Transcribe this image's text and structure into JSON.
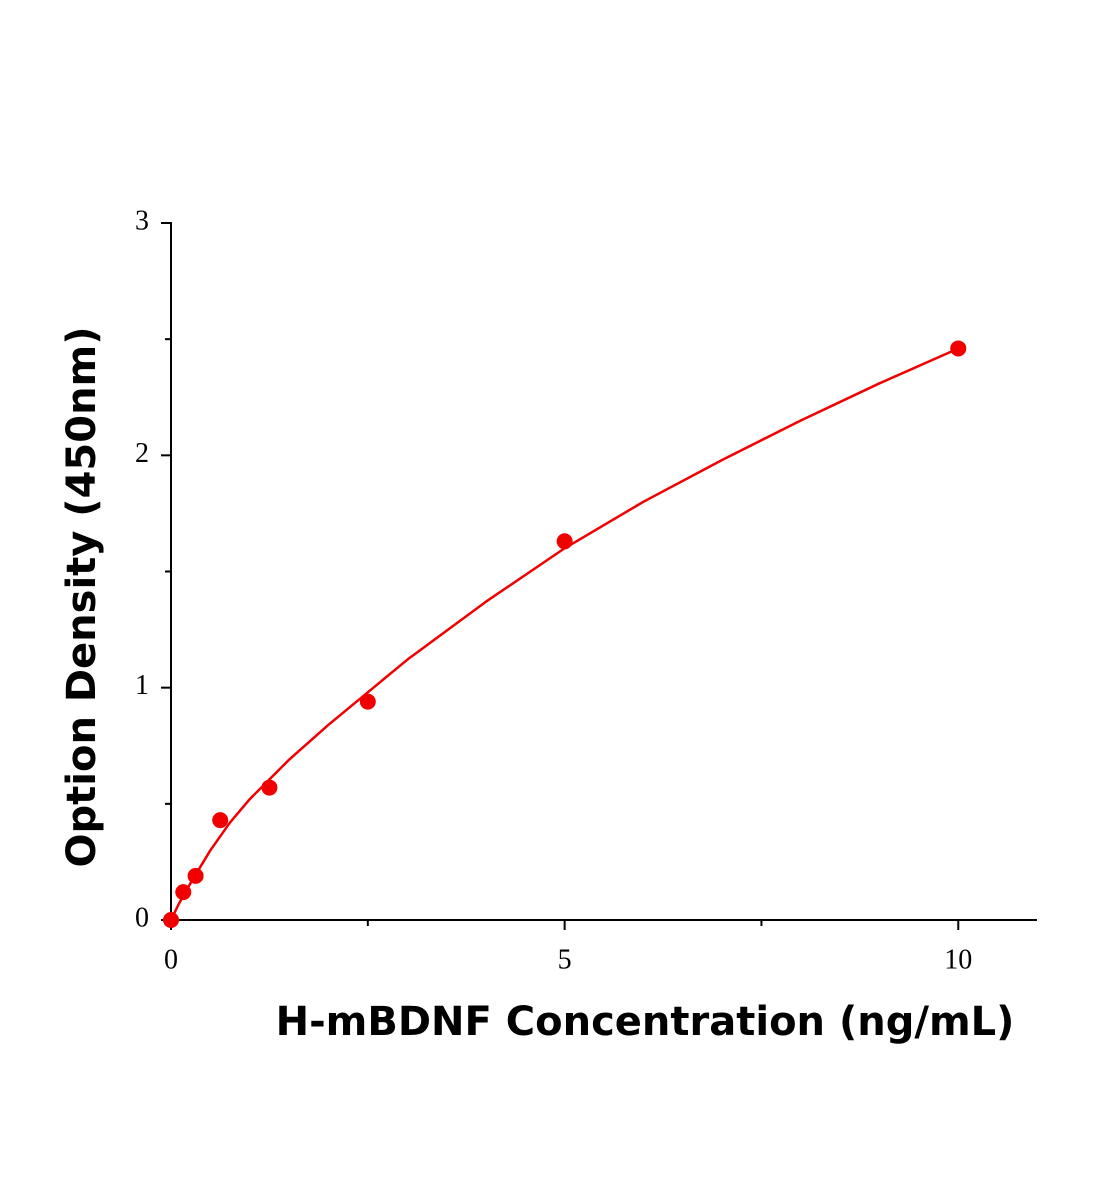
{
  "chart_data": {
    "type": "scatter",
    "x_label": "H-mBDNF Concentration (ng/mL)",
    "y_label": "Option Density (450nm)",
    "xlim": [
      0,
      11
    ],
    "ylim": [
      0,
      3
    ],
    "xticks": [
      0,
      5,
      10
    ],
    "yticks": [
      0,
      1,
      2,
      3
    ],
    "xminorticks": [
      2.5,
      7.5
    ],
    "yminorticks": [
      0.5,
      1.5,
      2.5
    ],
    "series": [
      {
        "mode": "markers",
        "color": "#f00000",
        "x": [
          0,
          0.156,
          0.3125,
          0.625,
          1.25,
          2.5,
          5,
          10
        ],
        "values": [
          0,
          0.12,
          0.19,
          0.43,
          0.57,
          0.94,
          1.63,
          2.46
        ]
      },
      {
        "mode": "line",
        "color": "#f00000",
        "x": [
          0,
          0.1,
          0.25,
          0.5,
          0.75,
          1,
          1.5,
          2,
          2.5,
          3,
          4,
          5,
          6,
          7,
          8,
          9,
          10
        ],
        "values": [
          0,
          0.07,
          0.16,
          0.3,
          0.42,
          0.52,
          0.69,
          0.84,
          0.98,
          1.12,
          1.37,
          1.6,
          1.8,
          1.98,
          2.15,
          2.31,
          2.46
        ]
      }
    ]
  }
}
